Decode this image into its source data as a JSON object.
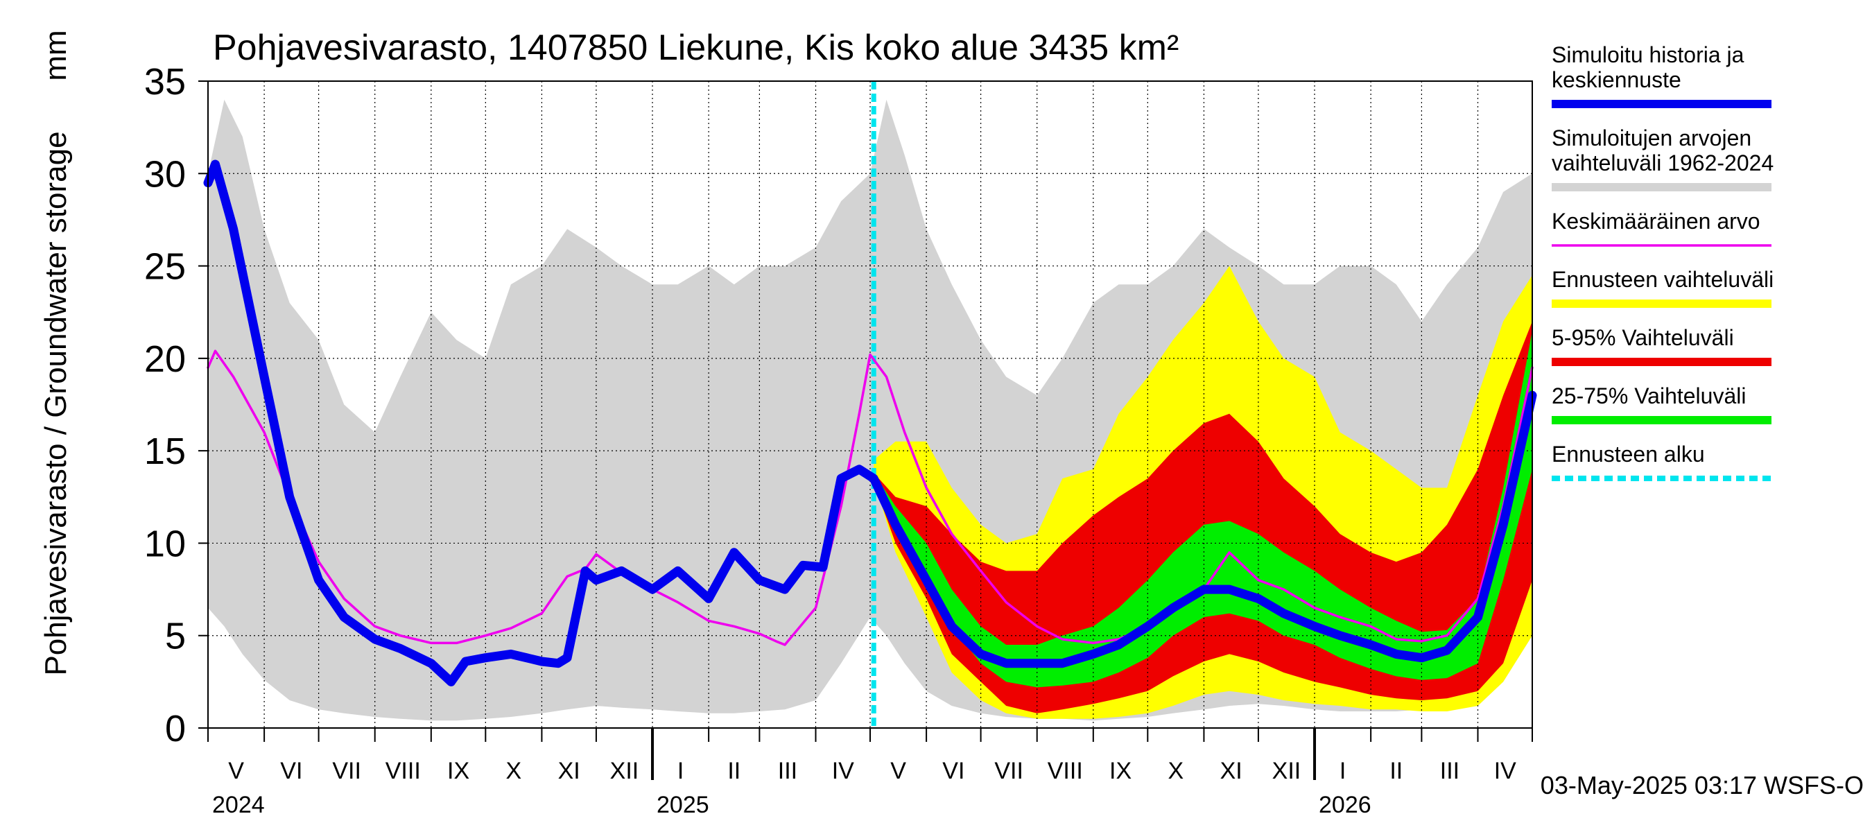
{
  "chart_data": {
    "type": "area",
    "title": "Pohjavesivarasto, 1407850 Liekune, Kis koko alue 3435 km²",
    "ylabel": "Pohjavesivarasto / Groundwater storage",
    "yunit": "mm",
    "ylim": [
      0,
      35
    ],
    "yticks": [
      0,
      5,
      10,
      15,
      20,
      25,
      30,
      35
    ],
    "xlim": [
      "2024-05-01",
      "2026-05-01"
    ],
    "forecast_start": "2025-05-03",
    "grid": true,
    "legend_position": "right",
    "footer": "03-May-2025 03:17 WSFS-O",
    "months": [
      {
        "label": "V",
        "date": "2024-05-01"
      },
      {
        "label": "VI",
        "date": "2024-06-01"
      },
      {
        "label": "VII",
        "date": "2024-07-01"
      },
      {
        "label": "VIII",
        "date": "2024-08-01"
      },
      {
        "label": "IX",
        "date": "2024-09-01"
      },
      {
        "label": "X",
        "date": "2024-10-01"
      },
      {
        "label": "XI",
        "date": "2024-11-01"
      },
      {
        "label": "XII",
        "date": "2024-12-01"
      },
      {
        "label": "I",
        "date": "2025-01-01"
      },
      {
        "label": "II",
        "date": "2025-02-01"
      },
      {
        "label": "III",
        "date": "2025-03-01"
      },
      {
        "label": "IV",
        "date": "2025-04-01"
      },
      {
        "label": "V",
        "date": "2025-05-01"
      },
      {
        "label": "VI",
        "date": "2025-06-01"
      },
      {
        "label": "VII",
        "date": "2025-07-01"
      },
      {
        "label": "VIII",
        "date": "2025-08-01"
      },
      {
        "label": "IX",
        "date": "2025-09-01"
      },
      {
        "label": "X",
        "date": "2025-10-01"
      },
      {
        "label": "XI",
        "date": "2025-11-01"
      },
      {
        "label": "XII",
        "date": "2025-12-01"
      },
      {
        "label": "I",
        "date": "2026-01-01"
      },
      {
        "label": "II",
        "date": "2026-02-01"
      },
      {
        "label": "III",
        "date": "2026-03-01"
      },
      {
        "label": "IV",
        "date": "2026-04-01"
      }
    ],
    "years": [
      {
        "label": "2024",
        "date": "2024-05-01"
      },
      {
        "label": "2025",
        "date": "2025-01-01"
      },
      {
        "label": "2026",
        "date": "2026-01-01"
      }
    ],
    "legend": [
      {
        "label": "Simuloitu historia ja keskiennuste",
        "color": "#0000ee",
        "style": "thick"
      },
      {
        "label": "Simuloitujen arvojen vaihteluväli 1962-2024",
        "color": "#d3d3d3",
        "style": "thick"
      },
      {
        "label": "Keskimääräinen arvo",
        "color": "#ee00ee",
        "style": "thin"
      },
      {
        "label": "Ennusteen vaihteluväli",
        "color": "#ffff00",
        "style": "thick"
      },
      {
        "label": "5-95% Vaihteluväli",
        "color": "#ee0000",
        "style": "thick"
      },
      {
        "label": "25-75% Vaihteluväli",
        "color": "#00ee00",
        "style": "thick"
      },
      {
        "label": "Ennusteen alku",
        "color": "#00e5ee",
        "style": "dashed"
      }
    ],
    "series": [
      {
        "name": "Simuloitujen arvojen vaihteluväli 1962-2024",
        "kind": "band",
        "color": "#d3d3d3",
        "x": [
          "2024-05-01",
          "2024-05-10",
          "2024-05-20",
          "2024-06-01",
          "2024-06-15",
          "2024-07-01",
          "2024-07-15",
          "2024-08-01",
          "2024-08-15",
          "2024-09-01",
          "2024-09-15",
          "2024-10-01",
          "2024-10-15",
          "2024-11-01",
          "2024-11-15",
          "2024-12-01",
          "2024-12-15",
          "2025-01-01",
          "2025-01-15",
          "2025-02-01",
          "2025-02-15",
          "2025-03-01",
          "2025-03-15",
          "2025-04-01",
          "2025-04-15",
          "2025-05-01",
          "2025-05-10",
          "2025-05-20",
          "2025-06-01",
          "2025-06-15",
          "2025-07-01",
          "2025-07-15",
          "2025-08-01",
          "2025-08-15",
          "2025-09-01",
          "2025-09-15",
          "2025-10-01",
          "2025-10-15",
          "2025-11-01",
          "2025-11-15",
          "2025-12-01",
          "2025-12-15",
          "2026-01-01",
          "2026-01-15",
          "2026-02-01",
          "2026-02-15",
          "2026-03-01",
          "2026-03-15",
          "2026-04-01",
          "2026-04-15",
          "2026-05-01"
        ],
        "low": [
          6.5,
          5.5,
          4.0,
          2.6,
          1.5,
          1.0,
          0.8,
          0.6,
          0.5,
          0.4,
          0.4,
          0.5,
          0.6,
          0.8,
          1.0,
          1.2,
          1.1,
          1.0,
          0.9,
          0.8,
          0.8,
          0.9,
          1.0,
          1.5,
          3.5,
          6.0,
          5.0,
          3.5,
          2.0,
          1.2,
          0.8,
          0.6,
          0.5,
          0.5,
          0.4,
          0.5,
          0.6,
          0.8,
          1.0,
          1.2,
          1.3,
          1.2,
          1.0,
          0.9,
          0.9,
          0.9,
          1.0,
          1.0,
          1.2,
          2.5,
          5.0
        ],
        "high": [
          30,
          34,
          32,
          27,
          23,
          21,
          17.5,
          16,
          19,
          22.5,
          21,
          20,
          24,
          25,
          27,
          26,
          25,
          24,
          24,
          25,
          24,
          25,
          25,
          26,
          28.5,
          30,
          34,
          31,
          27,
          24,
          21,
          19,
          18,
          20,
          23,
          24,
          24,
          25,
          27,
          26,
          25,
          24,
          24,
          25,
          25,
          24,
          22,
          24,
          26,
          29,
          30
        ]
      },
      {
        "name": "Ennusteen vaihteluväli",
        "kind": "band",
        "color": "#ffff00",
        "x": [
          "2025-05-03",
          "2025-05-15",
          "2025-06-01",
          "2025-06-15",
          "2025-07-01",
          "2025-07-15",
          "2025-08-01",
          "2025-08-15",
          "2025-09-01",
          "2025-09-15",
          "2025-10-01",
          "2025-10-15",
          "2025-11-01",
          "2025-11-15",
          "2025-12-01",
          "2025-12-15",
          "2026-01-01",
          "2026-01-15",
          "2026-02-01",
          "2026-02-15",
          "2026-03-01",
          "2026-03-15",
          "2026-04-01",
          "2026-04-15",
          "2026-05-01"
        ],
        "low": [
          13.5,
          9.5,
          6.0,
          3.0,
          1.5,
          0.8,
          0.5,
          0.5,
          0.5,
          0.6,
          0.8,
          1.2,
          1.8,
          2.0,
          1.8,
          1.5,
          1.3,
          1.2,
          1.0,
          1.0,
          0.9,
          0.9,
          1.2,
          2.5,
          5.0
        ],
        "high": [
          14.5,
          15.5,
          15.5,
          13,
          11,
          10,
          10.5,
          13.5,
          14,
          17,
          19,
          21,
          23,
          25,
          22,
          20,
          19,
          16,
          15,
          14,
          13,
          13,
          18,
          22,
          24.5
        ]
      },
      {
        "name": "5-95% Vaihteluväli",
        "kind": "band",
        "color": "#ee0000",
        "x": [
          "2025-05-03",
          "2025-05-15",
          "2025-06-01",
          "2025-06-15",
          "2025-07-01",
          "2025-07-15",
          "2025-08-01",
          "2025-08-15",
          "2025-09-01",
          "2025-09-15",
          "2025-10-01",
          "2025-10-15",
          "2025-11-01",
          "2025-11-15",
          "2025-12-01",
          "2025-12-15",
          "2026-01-01",
          "2026-01-15",
          "2026-02-01",
          "2026-02-15",
          "2026-03-01",
          "2026-03-15",
          "2026-04-01",
          "2026-04-15",
          "2026-05-01"
        ],
        "low": [
          13.3,
          10,
          7,
          4,
          2.5,
          1.2,
          0.8,
          1.0,
          1.3,
          1.6,
          2.0,
          2.8,
          3.6,
          4.0,
          3.6,
          3.0,
          2.5,
          2.2,
          1.8,
          1.6,
          1.5,
          1.6,
          2.0,
          3.5,
          8.0
        ],
        "high": [
          13.8,
          12.5,
          12,
          10.5,
          9,
          8.5,
          8.5,
          10,
          11.5,
          12.5,
          13.5,
          15,
          16.5,
          17,
          15.5,
          13.5,
          12,
          10.5,
          9.5,
          9,
          9.5,
          11,
          14,
          18,
          22
        ]
      },
      {
        "name": "25-75% Vaihteluväli",
        "kind": "band",
        "color": "#00ee00",
        "x": [
          "2025-05-03",
          "2025-05-15",
          "2025-06-01",
          "2025-06-15",
          "2025-07-01",
          "2025-07-15",
          "2025-08-01",
          "2025-08-15",
          "2025-09-01",
          "2025-09-15",
          "2025-10-01",
          "2025-10-15",
          "2025-11-01",
          "2025-11-15",
          "2025-12-01",
          "2025-12-15",
          "2026-01-01",
          "2026-01-15",
          "2026-02-01",
          "2026-02-15",
          "2026-03-01",
          "2026-03-15",
          "2026-04-01",
          "2026-04-15",
          "2026-05-01"
        ],
        "low": [
          13.5,
          11,
          8,
          5.5,
          3.5,
          2.5,
          2.2,
          2.3,
          2.5,
          3.0,
          3.8,
          5.0,
          6.0,
          6.2,
          5.8,
          5.0,
          4.5,
          3.8,
          3.2,
          2.8,
          2.6,
          2.7,
          3.5,
          8.0,
          14
        ],
        "high": [
          13.8,
          12,
          10,
          7.5,
          5.5,
          4.5,
          4.5,
          5.0,
          5.5,
          6.5,
          8.0,
          9.5,
          11.0,
          11.2,
          10.5,
          9.5,
          8.5,
          7.5,
          6.5,
          5.8,
          5.2,
          5.3,
          7,
          13,
          21.5
        ]
      },
      {
        "name": "Keskimääräinen arvo",
        "kind": "line",
        "color": "#ee00ee",
        "x": [
          "2024-05-01",
          "2024-05-05",
          "2024-05-15",
          "2024-06-01",
          "2024-06-15",
          "2024-07-01",
          "2024-07-15",
          "2024-08-01",
          "2024-08-15",
          "2024-09-01",
          "2024-09-15",
          "2024-10-01",
          "2024-10-15",
          "2024-11-01",
          "2024-11-10",
          "2024-11-15",
          "2024-11-25",
          "2024-12-01",
          "2024-12-15",
          "2025-01-01",
          "2025-01-15",
          "2025-02-01",
          "2025-02-15",
          "2025-03-01",
          "2025-03-10",
          "2025-03-15",
          "2025-04-01",
          "2025-04-15",
          "2025-04-25",
          "2025-05-01",
          "2025-05-10",
          "2025-05-20",
          "2025-06-01",
          "2025-06-15",
          "2025-07-01",
          "2025-07-15",
          "2025-08-01",
          "2025-08-15",
          "2025-09-01",
          "2025-09-15",
          "2025-10-01",
          "2025-10-15",
          "2025-11-01",
          "2025-11-15",
          "2025-12-01",
          "2025-12-15",
          "2026-01-01",
          "2026-01-15",
          "2026-02-01",
          "2026-02-15",
          "2026-03-01",
          "2026-03-15",
          "2026-04-01",
          "2026-04-15",
          "2026-05-01"
        ],
        "y": [
          19.5,
          20.4,
          19.0,
          16.0,
          12.5,
          9.0,
          7.0,
          5.5,
          5.0,
          4.6,
          4.6,
          5.0,
          5.4,
          6.2,
          7.5,
          8.2,
          8.6,
          9.4,
          8.4,
          7.5,
          6.8,
          5.8,
          5.5,
          5.1,
          4.7,
          4.5,
          6.5,
          12.0,
          17.0,
          20.2,
          19.0,
          16.0,
          13.0,
          10.5,
          8.5,
          6.8,
          5.5,
          4.8,
          4.6,
          4.8,
          5.5,
          6.5,
          7.5,
          9.5,
          8.0,
          7.5,
          6.5,
          6.0,
          5.5,
          4.8,
          4.7,
          5.0,
          7.0,
          12.0,
          19.5
        ]
      },
      {
        "name": "Simuloitu historia ja keskiennuste",
        "kind": "line",
        "color": "#0000ee",
        "x": [
          "2024-05-01",
          "2024-05-05",
          "2024-05-15",
          "2024-06-01",
          "2024-06-15",
          "2024-07-01",
          "2024-07-15",
          "2024-08-01",
          "2024-08-15",
          "2024-09-01",
          "2024-09-12",
          "2024-09-20",
          "2024-10-01",
          "2024-10-15",
          "2024-11-01",
          "2024-11-10",
          "2024-11-15",
          "2024-11-25",
          "2024-12-01",
          "2024-12-15",
          "2025-01-01",
          "2025-01-15",
          "2025-02-01",
          "2025-02-15",
          "2025-03-01",
          "2025-03-15",
          "2025-03-25",
          "2025-04-05",
          "2025-04-15",
          "2025-04-25",
          "2025-05-03",
          "2025-05-15",
          "2025-06-01",
          "2025-06-15",
          "2025-07-01",
          "2025-07-15",
          "2025-08-01",
          "2025-08-15",
          "2025-09-01",
          "2025-09-15",
          "2025-10-01",
          "2025-10-15",
          "2025-11-01",
          "2025-11-15",
          "2025-12-01",
          "2025-12-15",
          "2026-01-01",
          "2026-01-15",
          "2026-02-01",
          "2026-02-15",
          "2026-03-01",
          "2026-03-15",
          "2026-04-01",
          "2026-04-15",
          "2026-05-01"
        ],
        "y": [
          29.5,
          30.5,
          27.0,
          19.0,
          12.5,
          8.0,
          6.0,
          4.8,
          4.3,
          3.5,
          2.5,
          3.6,
          3.8,
          4.0,
          3.6,
          3.5,
          3.8,
          8.5,
          8.0,
          8.5,
          7.5,
          8.5,
          7.0,
          9.5,
          8.0,
          7.5,
          8.8,
          8.7,
          13.5,
          14.0,
          13.5,
          11.0,
          8.0,
          5.5,
          4.0,
          3.5,
          3.5,
          3.5,
          4.0,
          4.5,
          5.5,
          6.5,
          7.5,
          7.5,
          7.0,
          6.2,
          5.5,
          5.0,
          4.5,
          4.0,
          3.8,
          4.2,
          6.0,
          11.0,
          18.0
        ]
      }
    ]
  }
}
